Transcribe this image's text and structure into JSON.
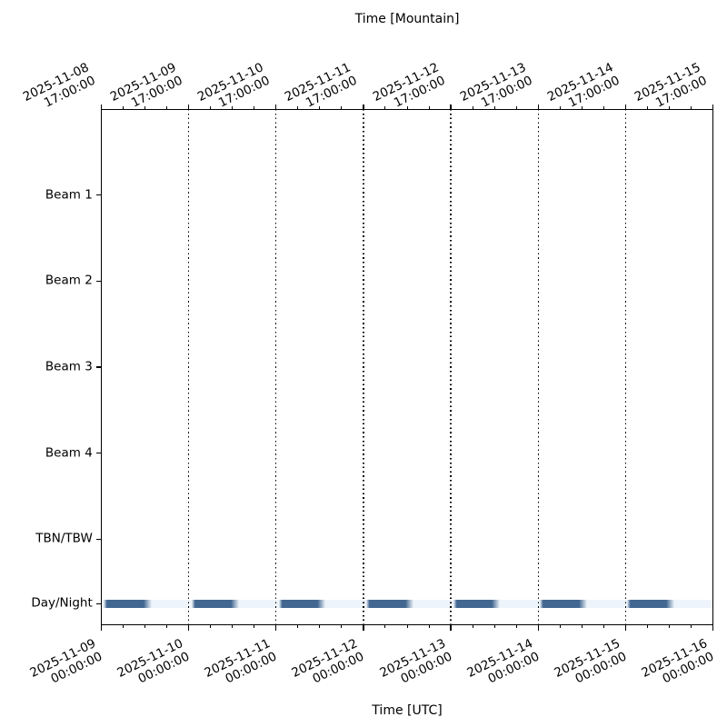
{
  "x_axis_top": {
    "label": "Time [Mountain]",
    "timezone": "Mountain",
    "ticks": [
      {
        "date": "2025-11-08",
        "time": "17:00:00"
      },
      {
        "date": "2025-11-09",
        "time": "17:00:00"
      },
      {
        "date": "2025-11-10",
        "time": "17:00:00"
      },
      {
        "date": "2025-11-11",
        "time": "17:00:00"
      },
      {
        "date": "2025-11-12",
        "time": "17:00:00"
      },
      {
        "date": "2025-11-13",
        "time": "17:00:00"
      },
      {
        "date": "2025-11-14",
        "time": "17:00:00"
      },
      {
        "date": "2025-11-15",
        "time": "17:00:00"
      }
    ]
  },
  "x_axis_bottom": {
    "label": "Time [UTC]",
    "timezone": "UTC",
    "ticks": [
      {
        "date": "2025-11-09",
        "time": "00:00:00"
      },
      {
        "date": "2025-11-10",
        "time": "00:00:00"
      },
      {
        "date": "2025-11-11",
        "time": "00:00:00"
      },
      {
        "date": "2025-11-12",
        "time": "00:00:00"
      },
      {
        "date": "2025-11-13",
        "time": "00:00:00"
      },
      {
        "date": "2025-11-14",
        "time": "00:00:00"
      },
      {
        "date": "2025-11-15",
        "time": "00:00:00"
      },
      {
        "date": "2025-11-16",
        "time": "00:00:00"
      }
    ]
  },
  "chart_data": {
    "type": "timeline",
    "rows": [
      "Beam 1",
      "Beam 2",
      "Beam 3",
      "Beam 4",
      "TBN/TBW",
      "Day/Night"
    ],
    "row_positions": [
      1,
      2,
      3,
      4,
      5,
      5.75
    ],
    "y_range": [
      0,
      6
    ],
    "x_range_utc": [
      "2025-11-09 00:00:00",
      "2025-11-16 00:00:00"
    ],
    "x_major_tick_interval_days": 1,
    "x_minor_tick_interval_hours": 6,
    "gridlines_days": [
      1,
      2,
      3,
      4,
      5,
      6
    ],
    "gridline_style": "dotted",
    "gridline_color": "#000000",
    "day_night_band": {
      "row": "Day/Night",
      "full_width": true,
      "color": "#edf4fb"
    },
    "bar_color": "#426790",
    "night_intervals_days": [
      [
        0.033,
        0.584
      ],
      [
        1.036,
        1.576
      ],
      [
        2.034,
        2.568
      ],
      [
        3.031,
        3.571
      ],
      [
        4.029,
        4.563
      ],
      [
        5.021,
        5.556
      ],
      [
        6.019,
        6.553
      ]
    ],
    "empty_rows": [
      "Beam 1",
      "Beam 2",
      "Beam 3",
      "Beam 4",
      "TBN/TBW"
    ],
    "legend": "none"
  }
}
